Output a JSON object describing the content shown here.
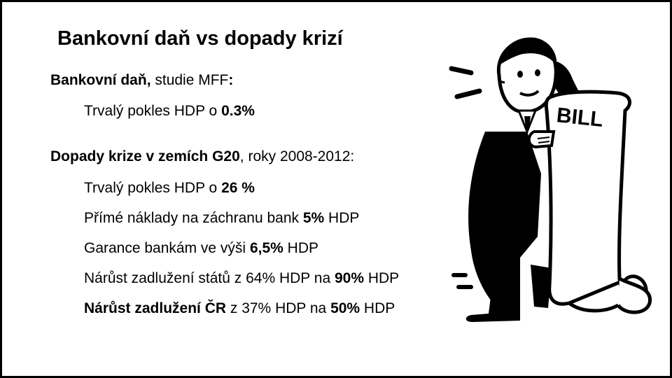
{
  "slide": {
    "title": "Bankovní daň vs dopady krizí",
    "section1": {
      "heading_bold": "Bankovní daň,",
      "heading_rest": " studie MFF",
      "heading_colon": ":",
      "item1_prefix": "Trvalý pokles HDP o ",
      "item1_value": "0.3%"
    },
    "section2": {
      "heading_bold": "Dopady krize v zemích G20",
      "heading_rest": ", roky 2008-2012:",
      "items": [
        {
          "prefix": "Trvalý pokles HDP o ",
          "value": "26 %",
          "suffix": ""
        },
        {
          "prefix": "Přímé náklady na záchranu bank ",
          "value": "5%",
          "suffix": " HDP"
        },
        {
          "prefix": "Garance bankám ve výši ",
          "value": "6,5%",
          "suffix": " HDP"
        },
        {
          "prefix": "Nárůst zadlužení států z 64% HDP na ",
          "value": "90%",
          "suffix": " HDP"
        }
      ],
      "last_item": {
        "bold_prefix": "Nárůst zadlužení ČR",
        "middle": " z 37% HDP na ",
        "value": "50%",
        "suffix": " HDP"
      }
    },
    "illustration": {
      "label": "BILL",
      "icon": "man-reading-long-bill-illustration"
    }
  }
}
